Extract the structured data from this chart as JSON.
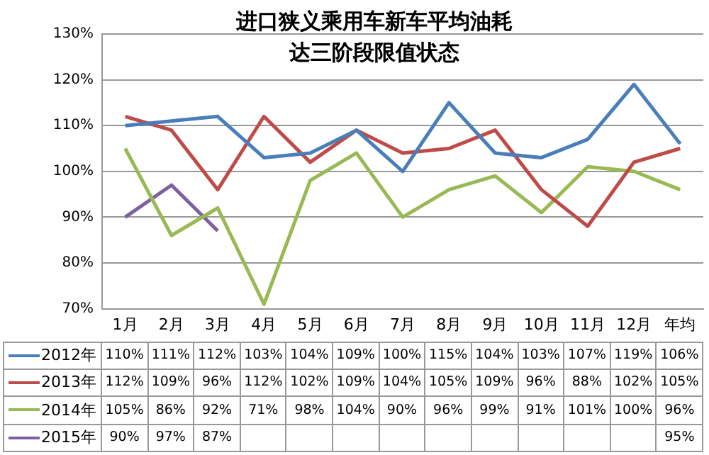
{
  "chart_data": {
    "type": "line",
    "title": "进口狭义乘用车新车平均油耗达三阶段限值状态",
    "categories": [
      "1月",
      "2月",
      "3月",
      "4月",
      "5月",
      "6月",
      "7月",
      "8月",
      "9月",
      "10月",
      "11月",
      "12月",
      "年均"
    ],
    "ylim": [
      70,
      130
    ],
    "yticks": [
      {
        "value": 70,
        "label": "70%"
      },
      {
        "value": 80,
        "label": "80%"
      },
      {
        "value": 90,
        "label": "90%"
      },
      {
        "value": 100,
        "label": "100%"
      },
      {
        "value": 110,
        "label": "110%"
      },
      {
        "value": 120,
        "label": "120%"
      },
      {
        "value": 130,
        "label": "130%"
      }
    ],
    "grid": "y",
    "legend": "bottom left",
    "marker": "none",
    "line_style": "solid",
    "series": [
      {
        "name": "2012年",
        "color": "#4a7ebb",
        "values": [
          110,
          111,
          112,
          103,
          104,
          109,
          100,
          115,
          104,
          103,
          107,
          119,
          106
        ],
        "value_labels": [
          "110%",
          "111%",
          "112%",
          "103%",
          "104%",
          "109%",
          "100%",
          "115%",
          "104%",
          "103%",
          "107%",
          "119%",
          "106%"
        ]
      },
      {
        "name": "2013年",
        "color": "#be4b48",
        "values": [
          112,
          109,
          96,
          112,
          102,
          109,
          104,
          105,
          109,
          96,
          88,
          102,
          105
        ],
        "value_labels": [
          "112%",
          "109%",
          "96%",
          "112%",
          "102%",
          "109%",
          "104%",
          "105%",
          "109%",
          "96%",
          "88%",
          "102%",
          "105%"
        ]
      },
      {
        "name": "2014年",
        "color": "#98b954",
        "values": [
          105,
          86,
          92,
          71,
          98,
          104,
          90,
          96,
          99,
          91,
          101,
          100,
          96
        ],
        "value_labels": [
          "105%",
          "86%",
          "92%",
          "71%",
          "98%",
          "104%",
          "90%",
          "96%",
          "99%",
          "91%",
          "101%",
          "100%",
          "96%"
        ]
      },
      {
        "name": "2015年",
        "color": "#7d60a0",
        "values": [
          90,
          97,
          87,
          null,
          null,
          null,
          null,
          null,
          null,
          null,
          null,
          null,
          null
        ],
        "value_labels": [
          "90%",
          "97%",
          "87%",
          null,
          null,
          null,
          null,
          null,
          null,
          null,
          null,
          null,
          "95%"
        ]
      }
    ]
  }
}
